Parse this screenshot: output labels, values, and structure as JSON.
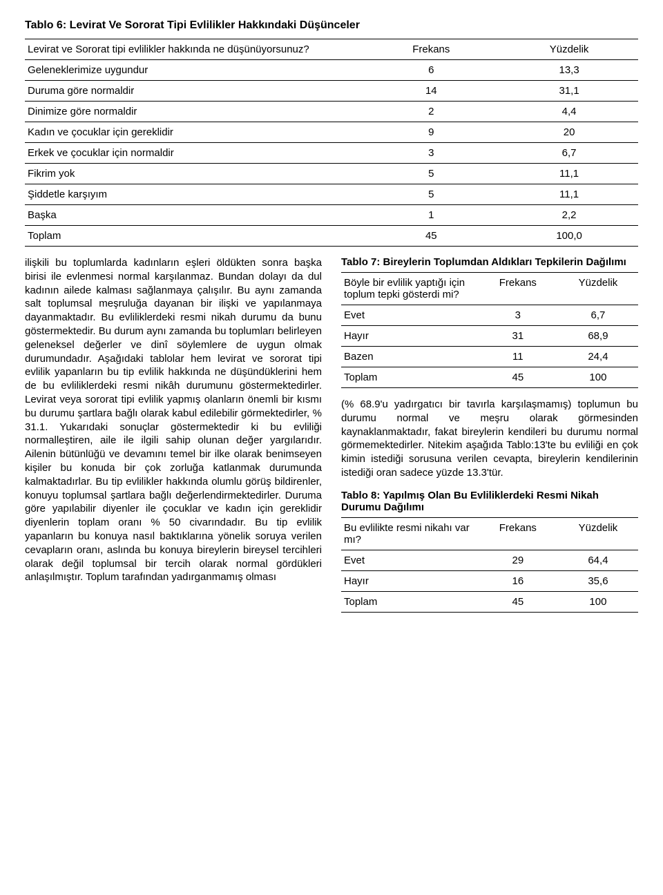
{
  "table6": {
    "title": "Tablo 6: Levirat Ve Sororat Tipi Evlilikler Hakkındaki Düşünceler",
    "question": "Levirat ve Sororat tipi evlilikler hakkında ne düşünüyorsunuz?",
    "col_freq": "Frekans",
    "col_pct": "Yüzdelik",
    "rows": [
      {
        "label": "Geleneklerimize uygundur",
        "freq": "6",
        "pct": "13,3"
      },
      {
        "label": "Duruma göre normaldir",
        "freq": "14",
        "pct": "31,1"
      },
      {
        "label": "Dinimize göre normaldir",
        "freq": "2",
        "pct": "4,4"
      },
      {
        "label": "Kadın ve çocuklar için gereklidir",
        "freq": "9",
        "pct": "20"
      },
      {
        "label": "Erkek ve çocuklar için normaldir",
        "freq": "3",
        "pct": "6,7"
      },
      {
        "label": "Fikrim yok",
        "freq": "5",
        "pct": "11,1"
      },
      {
        "label": "Şiddetle karşıyım",
        "freq": "5",
        "pct": "11,1"
      },
      {
        "label": "Başka",
        "freq": "1",
        "pct": "2,2"
      },
      {
        "label": "Toplam",
        "freq": "45",
        "pct": "100,0"
      }
    ]
  },
  "body_left": "ilişkili bu toplumlarda kadınların eşleri öldükten sonra başka birisi ile evlenmesi normal karşılanmaz. Bundan dolayı da dul kadının ailede kalması sağlanmaya çalışılır. Bu aynı zamanda salt toplumsal meşruluğa dayanan bir ilişki ve yapılanmaya dayanmaktadır. Bu evliliklerdeki resmi nikah durumu da bunu göstermektedir. Bu durum aynı zamanda bu toplumları belirleyen geleneksel değerler ve dinî söylemlere de uygun olmak durumundadır. Aşağıdaki tablolar hem levirat ve sororat tipi evlilik yapanların bu tip evlilik hakkında ne düşündüklerini hem de bu evliliklerdeki resmi nikâh durumunu göstermektedirler. Levirat veya sororat tipi evlilik yapmış olanların önemli bir kısmı bu durumu şartlara bağlı olarak kabul edilebilir görmektedirler, % 31.1. Yukarıdaki sonuçlar göstermektedir ki bu evliliği normalleştiren, aile ile ilgili sahip olunan değer yargılarıdır. Ailenin bütünlüğü ve devamını temel bir ilke olarak benimseyen kişiler bu konuda bir çok zorluğa katlanmak durumunda kalmaktadırlar. Bu tip evlilikler hakkında olumlu görüş bildirenler, konuyu toplumsal şartlara bağlı değerlendirmektedirler. Duruma göre yapılabilir diyenler ile çocuklar ve kadın için gereklidir diyenlerin toplam oranı % 50 civarındadır. Bu tip evlilik yapanların bu konuya nasıl baktıklarına yönelik soruya verilen cevapların oranı, aslında bu konuya bireylerin bireysel tercihleri olarak değil toplumsal bir tercih olarak normal gördükleri anlaşılmıştır. Toplum tarafından yadırganmamış olması",
  "table7": {
    "title": "Tablo 7: Bireylerin Toplumdan Aldıkları Tepkilerin Dağılımı",
    "question": "Böyle bir evlilik yaptığı için toplum tepki gösterdi mi?",
    "col_freq": "Frekans",
    "col_pct": "Yüzdelik",
    "rows": [
      {
        "label": "Evet",
        "freq": "3",
        "pct": "6,7"
      },
      {
        "label": "Hayır",
        "freq": "31",
        "pct": "68,9"
      },
      {
        "label": "Bazen",
        "freq": "11",
        "pct": "24,4"
      },
      {
        "label": "Toplam",
        "freq": "45",
        "pct": "100"
      }
    ]
  },
  "note_right": "(% 68.9'u yadırgatıcı bir tavırla karşılaşmamış) toplumun bu durumu normal ve meşru olarak görmesinden kaynaklanmaktadır, fakat bireylerin kendileri bu durumu normal görmemektedirler. Nitekim aşağıda Tablo:13'te bu evliliği en çok kimin istediği sorusuna verilen cevapta, bireylerin kendilerinin istediği oran sadece yüzde 13.3'tür.",
  "table8": {
    "title": "Tablo 8: Yapılmış Olan Bu Evliliklerdeki Resmi Nikah Durumu Dağılımı",
    "question": "Bu evlilikte resmi nikahı var mı?",
    "col_freq": "Frekans",
    "col_pct": "Yüzdelik",
    "rows": [
      {
        "label": "Evet",
        "freq": "29",
        "pct": "64,4"
      },
      {
        "label": "Hayır",
        "freq": "16",
        "pct": "35,6"
      },
      {
        "label": "Toplam",
        "freq": "45",
        "pct": "100"
      }
    ]
  }
}
